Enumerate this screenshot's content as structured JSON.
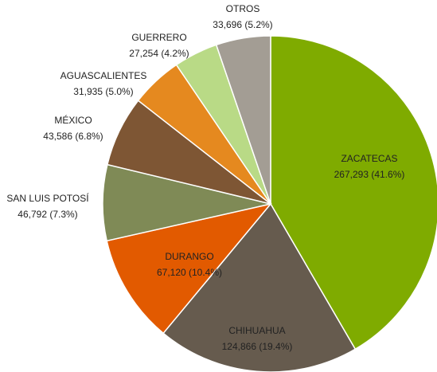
{
  "chart_data": {
    "type": "pie",
    "categories": [
      "ZACATECAS",
      "CHIHUAHUA",
      "DURANGO",
      "SAN LUIS POTOSÍ",
      "MÉXICO",
      "AGUASCALIENTES",
      "GUERRERO",
      "OTROS"
    ],
    "values": [
      267293,
      124866,
      67120,
      46792,
      43586,
      31935,
      27254,
      33696
    ],
    "value_labels": [
      "267,293 (41.6%)",
      "124,866 (19.4%)",
      "67,120 (10.4%)",
      "46,792  (7.3%)",
      "43,586 (6.8%)",
      "31,935 (5.0%)",
      "27,254 (4.2%)",
      "33,696 (5.2%)"
    ],
    "colors": [
      "#7fab00",
      "#665b4e",
      "#e25a00",
      "#7f8a56",
      "#7e5634",
      "#e5891f",
      "#b9da86",
      "#a39d94"
    ]
  }
}
